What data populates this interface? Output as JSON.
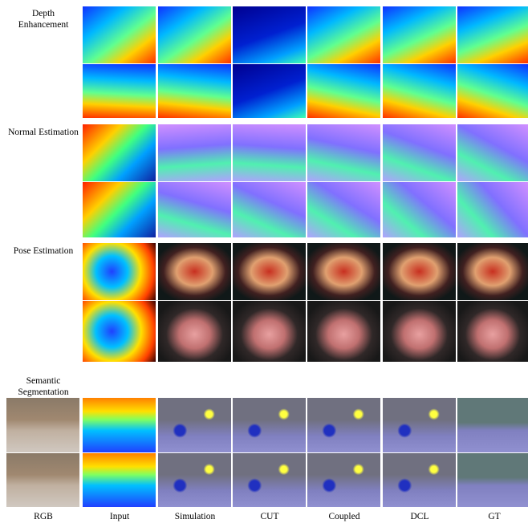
{
  "rows": [
    {
      "label": "Depth Enhancement"
    },
    {
      "label": "Normal Estimation"
    },
    {
      "label": "Pose Estimation"
    },
    {
      "label": "Semantic Segmentation"
    }
  ],
  "columns": [
    "RGB",
    "Input",
    "Simulation",
    "CUT",
    "Coupled",
    "DCL",
    "GT"
  ]
}
